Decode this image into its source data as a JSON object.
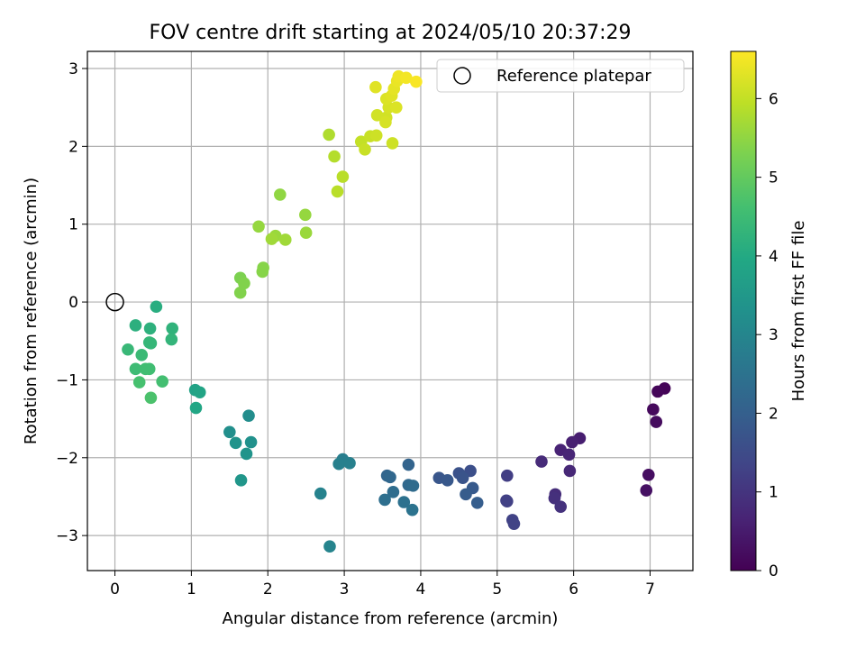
{
  "chart_data": {
    "type": "scatter",
    "title": "FOV centre drift starting at 2024/05/10 20:37:29",
    "xlabel": "Angular distance from reference (arcmin)",
    "ylabel": "Rotation from reference (arcmin)",
    "xlim": [
      -0.36,
      7.56
    ],
    "ylim": [
      -3.45,
      3.22
    ],
    "xticks": [
      0,
      1,
      2,
      3,
      4,
      5,
      6,
      7
    ],
    "yticks": [
      -3,
      -2,
      -1,
      0,
      1,
      2,
      3
    ],
    "xtick_labels": [
      "0",
      "1",
      "2",
      "3",
      "4",
      "5",
      "6",
      "7"
    ],
    "ytick_labels": [
      "−3",
      "−2",
      "−1",
      "0",
      "1",
      "2",
      "3"
    ],
    "grid": true,
    "legend": {
      "placement": "top-right",
      "label": "Reference platepar"
    },
    "reference_point": {
      "x": 0,
      "y": 0
    },
    "colorbar": {
      "label": "Hours from first FF file",
      "range": [
        0,
        6.6
      ],
      "ticks": [
        0,
        1,
        2,
        3,
        4,
        5,
        6
      ],
      "tick_labels": [
        "0",
        "1",
        "2",
        "3",
        "4",
        "5",
        "6"
      ],
      "colormap": "viridis"
    },
    "series": [
      {
        "points": [
          {
            "x": 7.19,
            "y": -1.11,
            "c": 0.05
          },
          {
            "x": 7.1,
            "y": -1.15,
            "c": 0.1
          },
          {
            "x": 7.04,
            "y": -1.38,
            "c": 0.15
          },
          {
            "x": 7.08,
            "y": -1.54,
            "c": 0.2
          },
          {
            "x": 6.98,
            "y": -2.22,
            "c": 0.25
          },
          {
            "x": 6.95,
            "y": -2.42,
            "c": 0.3
          },
          {
            "x": 6.08,
            "y": -1.75,
            "c": 0.55
          },
          {
            "x": 5.98,
            "y": -1.8,
            "c": 0.6
          },
          {
            "x": 5.83,
            "y": -1.9,
            "c": 0.65
          },
          {
            "x": 5.94,
            "y": -1.96,
            "c": 0.7
          },
          {
            "x": 5.95,
            "y": -2.17,
            "c": 0.75
          },
          {
            "x": 5.58,
            "y": -2.05,
            "c": 0.8
          },
          {
            "x": 5.76,
            "y": -2.47,
            "c": 0.85
          },
          {
            "x": 5.75,
            "y": -2.52,
            "c": 0.9
          },
          {
            "x": 5.83,
            "y": -2.63,
            "c": 0.95
          },
          {
            "x": 5.13,
            "y": -2.23,
            "c": 1.2
          },
          {
            "x": 5.12,
            "y": -2.55,
            "c": 1.25
          },
          {
            "x": 5.13,
            "y": -2.56,
            "c": 1.25
          },
          {
            "x": 5.2,
            "y": -2.8,
            "c": 1.3
          },
          {
            "x": 5.22,
            "y": -2.85,
            "c": 1.3
          },
          {
            "x": 4.65,
            "y": -2.17,
            "c": 1.6
          },
          {
            "x": 4.5,
            "y": -2.2,
            "c": 1.65
          },
          {
            "x": 4.55,
            "y": -2.26,
            "c": 1.7
          },
          {
            "x": 4.24,
            "y": -2.26,
            "c": 1.75
          },
          {
            "x": 4.35,
            "y": -2.29,
            "c": 1.8
          },
          {
            "x": 4.68,
            "y": -2.39,
            "c": 1.85
          },
          {
            "x": 4.59,
            "y": -2.47,
            "c": 1.9
          },
          {
            "x": 4.74,
            "y": -2.58,
            "c": 1.95
          },
          {
            "x": 3.84,
            "y": -2.09,
            "c": 2.1
          },
          {
            "x": 3.56,
            "y": -2.23,
            "c": 2.15
          },
          {
            "x": 3.6,
            "y": -2.25,
            "c": 2.2
          },
          {
            "x": 3.84,
            "y": -2.35,
            "c": 2.25
          },
          {
            "x": 3.9,
            "y": -2.36,
            "c": 2.3
          },
          {
            "x": 3.64,
            "y": -2.44,
            "c": 2.35
          },
          {
            "x": 3.53,
            "y": -2.54,
            "c": 2.4
          },
          {
            "x": 3.78,
            "y": -2.57,
            "c": 2.45
          },
          {
            "x": 3.89,
            "y": -2.67,
            "c": 2.5
          },
          {
            "x": 2.98,
            "y": -2.02,
            "c": 2.8
          },
          {
            "x": 2.93,
            "y": -2.08,
            "c": 2.85
          },
          {
            "x": 3.07,
            "y": -2.07,
            "c": 2.85
          },
          {
            "x": 2.69,
            "y": -2.46,
            "c": 2.9
          },
          {
            "x": 2.81,
            "y": -3.14,
            "c": 2.95
          },
          {
            "x": 1.75,
            "y": -1.46,
            "c": 3.2
          },
          {
            "x": 1.5,
            "y": -1.67,
            "c": 3.25
          },
          {
            "x": 1.78,
            "y": -1.8,
            "c": 3.3
          },
          {
            "x": 1.58,
            "y": -1.81,
            "c": 3.35
          },
          {
            "x": 1.72,
            "y": -1.95,
            "c": 3.4
          },
          {
            "x": 1.65,
            "y": -2.29,
            "c": 3.45
          },
          {
            "x": 1.05,
            "y": -1.13,
            "c": 3.8
          },
          {
            "x": 1.11,
            "y": -1.16,
            "c": 3.85
          },
          {
            "x": 1.06,
            "y": -1.36,
            "c": 3.9
          },
          {
            "x": 0.54,
            "y": -0.06,
            "c": 4.1
          },
          {
            "x": 0.27,
            "y": -0.3,
            "c": 4.15
          },
          {
            "x": 0.46,
            "y": -0.34,
            "c": 4.2
          },
          {
            "x": 0.75,
            "y": -0.34,
            "c": 4.25
          },
          {
            "x": 0.74,
            "y": -0.48,
            "c": 4.3
          },
          {
            "x": 0.45,
            "y": -0.52,
            "c": 4.35
          },
          {
            "x": 0.47,
            "y": -0.53,
            "c": 4.35
          },
          {
            "x": 0.17,
            "y": -0.61,
            "c": 4.4
          },
          {
            "x": 0.35,
            "y": -0.68,
            "c": 4.45
          },
          {
            "x": 0.27,
            "y": -0.86,
            "c": 4.5
          },
          {
            "x": 0.4,
            "y": -0.86,
            "c": 4.55
          },
          {
            "x": 0.45,
            "y": -0.86,
            "c": 4.55
          },
          {
            "x": 0.62,
            "y": -1.02,
            "c": 4.6
          },
          {
            "x": 0.32,
            "y": -1.03,
            "c": 4.65
          },
          {
            "x": 0.47,
            "y": -1.23,
            "c": 4.7
          },
          {
            "x": 1.64,
            "y": 0.31,
            "c": 5.3
          },
          {
            "x": 1.69,
            "y": 0.24,
            "c": 5.35
          },
          {
            "x": 1.64,
            "y": 0.12,
            "c": 5.35
          },
          {
            "x": 1.94,
            "y": 0.44,
            "c": 5.4
          },
          {
            "x": 1.93,
            "y": 0.39,
            "c": 5.4
          },
          {
            "x": 2.16,
            "y": 1.38,
            "c": 5.5
          },
          {
            "x": 1.88,
            "y": 0.97,
            "c": 5.55
          },
          {
            "x": 2.49,
            "y": 1.12,
            "c": 5.55
          },
          {
            "x": 2.5,
            "y": 0.89,
            "c": 5.6
          },
          {
            "x": 2.1,
            "y": 0.85,
            "c": 5.6
          },
          {
            "x": 2.05,
            "y": 0.81,
            "c": 5.65
          },
          {
            "x": 2.23,
            "y": 0.8,
            "c": 5.65
          },
          {
            "x": 2.8,
            "y": 2.15,
            "c": 5.8
          },
          {
            "x": 2.87,
            "y": 1.87,
            "c": 5.85
          },
          {
            "x": 2.98,
            "y": 1.61,
            "c": 5.9
          },
          {
            "x": 2.91,
            "y": 1.42,
            "c": 5.9
          },
          {
            "x": 3.22,
            "y": 2.06,
            "c": 6.0
          },
          {
            "x": 3.34,
            "y": 2.13,
            "c": 6.05
          },
          {
            "x": 3.27,
            "y": 1.96,
            "c": 6.05
          },
          {
            "x": 3.42,
            "y": 2.14,
            "c": 6.1
          },
          {
            "x": 3.63,
            "y": 2.04,
            "c": 6.1
          },
          {
            "x": 3.43,
            "y": 2.4,
            "c": 6.15
          },
          {
            "x": 3.55,
            "y": 2.37,
            "c": 6.15
          },
          {
            "x": 3.54,
            "y": 2.31,
            "c": 6.2
          },
          {
            "x": 3.58,
            "y": 2.5,
            "c": 6.2
          },
          {
            "x": 3.68,
            "y": 2.5,
            "c": 6.25
          },
          {
            "x": 3.55,
            "y": 2.61,
            "c": 6.25
          },
          {
            "x": 3.62,
            "y": 2.65,
            "c": 6.3
          },
          {
            "x": 3.41,
            "y": 2.76,
            "c": 6.3
          },
          {
            "x": 3.65,
            "y": 2.74,
            "c": 6.35
          },
          {
            "x": 3.69,
            "y": 2.84,
            "c": 6.4
          },
          {
            "x": 3.71,
            "y": 2.9,
            "c": 6.45
          },
          {
            "x": 3.81,
            "y": 2.88,
            "c": 6.5
          },
          {
            "x": 3.94,
            "y": 2.83,
            "c": 6.55
          }
        ]
      }
    ]
  }
}
